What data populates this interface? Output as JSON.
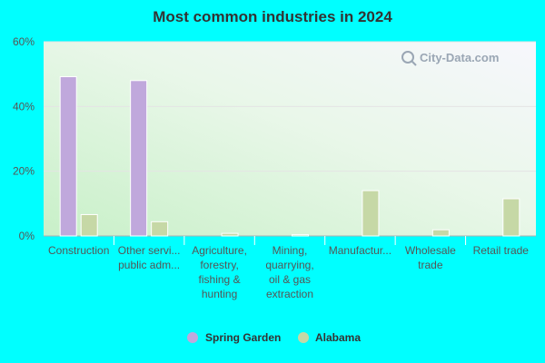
{
  "chart_data": {
    "type": "bar",
    "title": "Most common industries in 2024",
    "categories": [
      [
        "Construction"
      ],
      [
        "Other servi...",
        "public adm..."
      ],
      [
        "Agriculture,",
        "forestry,",
        "fishing &",
        "hunting"
      ],
      [
        "Mining,",
        "quarrying,",
        "oil & gas",
        "extraction"
      ],
      [
        "Manufactur..."
      ],
      [
        "Wholesale",
        "trade"
      ],
      [
        "Retail trade"
      ]
    ],
    "series": [
      {
        "name": "Spring Garden",
        "color": "#c0a8dc",
        "values": [
          49.2,
          48.0,
          0,
          0,
          0,
          0,
          0
        ]
      },
      {
        "name": "Alabama",
        "color": "#c6d8a6",
        "values": [
          6.6,
          4.4,
          0.8,
          0.4,
          14.0,
          1.9,
          11.5
        ]
      }
    ],
    "yticks": [
      "0%",
      "20%",
      "40%",
      "60%"
    ],
    "ylim": [
      0,
      60
    ],
    "xlabel": "",
    "ylabel": "",
    "grid": true,
    "legend": "bottom-center",
    "watermark": "City-Data.com"
  }
}
